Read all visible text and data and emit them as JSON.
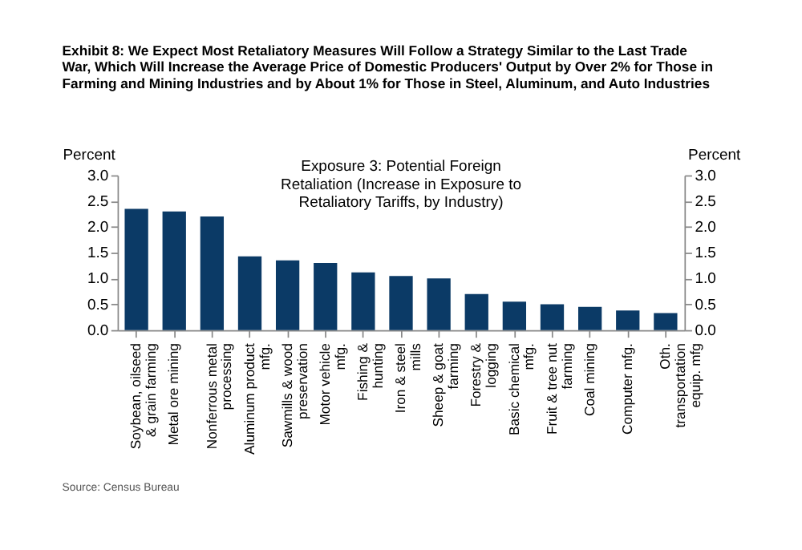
{
  "chart_data": {
    "type": "bar",
    "title": "Exhibit 8: We Expect Most Retaliatory Measures Will Follow a Strategy Similar to the Last Trade War, Which Will Increase the Average Price of Domestic Producers' Output by Over 2% for Those in Farming and Mining Industries and by About 1% for Those in Steel, Aluminum, and Auto Industries",
    "subtitle": "Exposure 3: Potential Foreign Retaliation (Increase in Exposure to Retaliatory Tariffs, by Industry)",
    "ylabel": "Percent",
    "y2label": "Percent",
    "categories": [
      "Soybean, oilseed & grain farming",
      "Metal ore mining",
      "Nonferrous metal processing",
      "Aluminum product mfg.",
      "Sawmills & wood preservation",
      "Motor vehicle mfg.",
      "Fishing & hunting",
      "Iron & steel mills",
      "Sheep & goat farming",
      "Forestry & logging",
      "Basic chemical mfg.",
      "Fruit & tree nut farming",
      "Coal mining",
      "Computer mfg.",
      "Oth. transportation equip. mfg"
    ],
    "values": [
      2.35,
      2.3,
      2.2,
      1.43,
      1.35,
      1.3,
      1.12,
      1.05,
      1.0,
      0.7,
      0.55,
      0.5,
      0.45,
      0.38,
      0.33
    ],
    "color": "#0b3a66",
    "ylim": [
      0,
      3
    ],
    "yticks": [
      {
        "value": 0,
        "label": "0.0"
      },
      {
        "value": 0.5,
        "label": "0.5"
      },
      {
        "value": 1,
        "label": "1.0"
      },
      {
        "value": 1.5,
        "label": "1.5"
      },
      {
        "value": 2,
        "label": "2.0"
      },
      {
        "value": 2.5,
        "label": "2.5"
      },
      {
        "value": 3,
        "label": "3.0"
      }
    ],
    "y2lim": [
      0,
      3
    ],
    "y2ticks": [
      {
        "value": 0,
        "label": "0.0"
      },
      {
        "value": 0.5,
        "label": "0.5"
      },
      {
        "value": 1,
        "label": "1.0"
      },
      {
        "value": 1.5,
        "label": "1.5"
      },
      {
        "value": 2,
        "label": "2.0"
      },
      {
        "value": 2.5,
        "label": "2.5"
      },
      {
        "value": 3,
        "label": "3.0"
      }
    ],
    "grid": false,
    "annotations": [
      "Source: Census Bureau"
    ]
  }
}
